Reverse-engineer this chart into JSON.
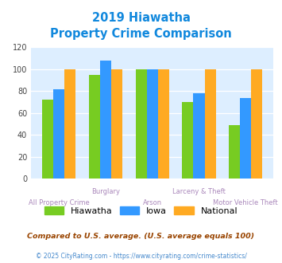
{
  "title_line1": "2019 Hiawatha",
  "title_line2": "Property Crime Comparison",
  "categories": [
    "All Property Crime",
    "Burglary",
    "Arson",
    "Larceny & Theft",
    "Motor Vehicle Theft"
  ],
  "top_labels": {
    "1": "Burglary",
    "3": "Larceny & Theft"
  },
  "bottom_labels": {
    "0": "All Property Crime",
    "2": "Arson",
    "4": "Motor Vehicle Theft"
  },
  "hiawatha": [
    72,
    95,
    100,
    70,
    49
  ],
  "iowa": [
    82,
    108,
    100,
    78,
    74
  ],
  "national": [
    100,
    100,
    100,
    100,
    100
  ],
  "hiawatha_color": "#77cc22",
  "iowa_color": "#3399ff",
  "national_color": "#ffaa22",
  "bg_color": "#ddeeff",
  "ylim": [
    0,
    120
  ],
  "yticks": [
    0,
    20,
    40,
    60,
    80,
    100,
    120
  ],
  "title_color": "#1188dd",
  "xlabel_color": "#aa88bb",
  "legend_labels": [
    "Hiawatha",
    "Iowa",
    "National"
  ],
  "legend_text_color": "#222222",
  "footnote1": "Compared to U.S. average. (U.S. average equals 100)",
  "footnote2": "© 2025 CityRating.com - https://www.cityrating.com/crime-statistics/",
  "footnote1_color": "#994400",
  "footnote2_color": "#4488cc"
}
